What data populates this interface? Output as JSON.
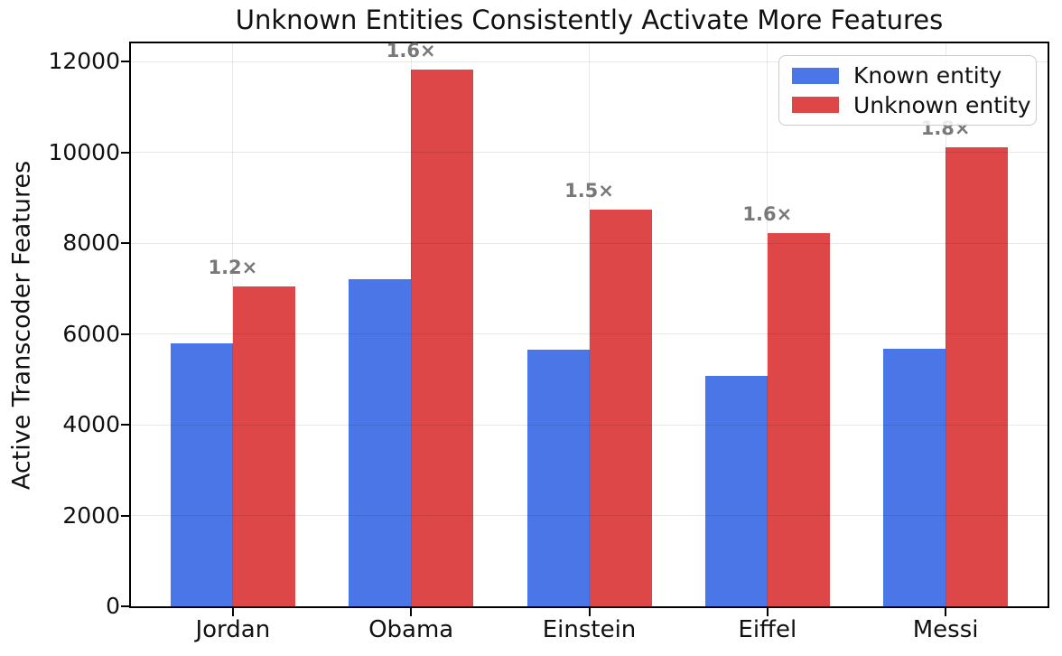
{
  "chart_data": {
    "type": "bar",
    "title": "Unknown Entities Consistently Activate More Features",
    "xlabel": "",
    "ylabel": "Active Transcoder Features",
    "categories": [
      "Jordan",
      "Obama",
      "Einstein",
      "Eiffel",
      "Messi"
    ],
    "series": [
      {
        "name": "Known entity",
        "color": "#4a76e8",
        "values": [
          5800,
          7200,
          5650,
          5080,
          5680
        ]
      },
      {
        "name": "Unknown entity",
        "color": "#de4747",
        "values": [
          7040,
          11820,
          8740,
          8230,
          10120
        ]
      }
    ],
    "bar_ratio_labels": [
      "1.2×",
      "1.6×",
      "1.5×",
      "1.6×",
      "1.8×"
    ],
    "annotation_color": "#787878",
    "yticks": [
      0,
      2000,
      4000,
      6000,
      8000,
      10000,
      12000
    ],
    "ylim": [
      0,
      12400
    ],
    "grid": true,
    "legend_position": "upper right"
  }
}
